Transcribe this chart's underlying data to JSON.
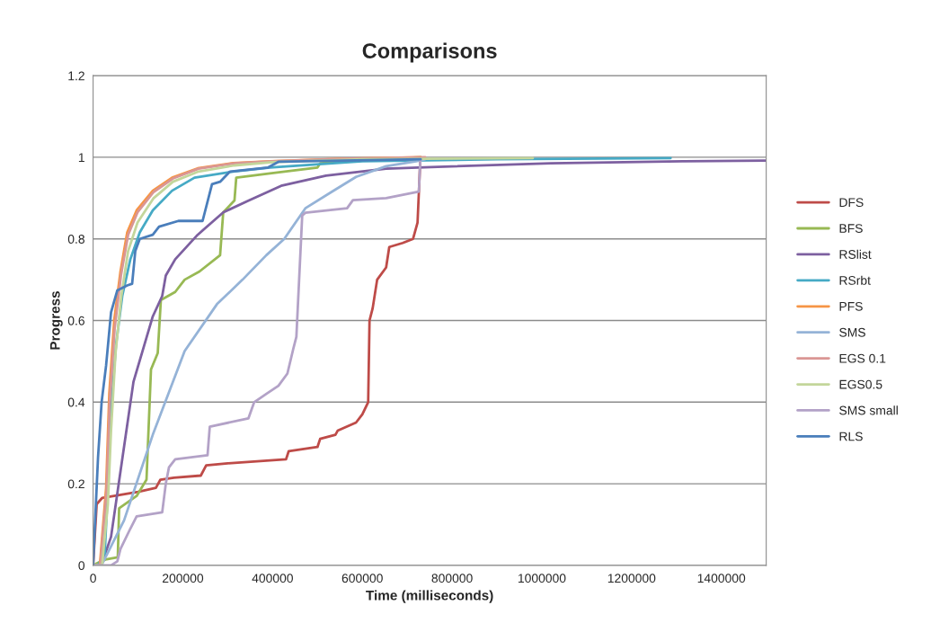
{
  "chart_data": {
    "type": "line",
    "title": "Comparisons",
    "xlabel": "Time (milliseconds)",
    "ylabel": "Progress",
    "xlim": [
      0,
      1500000
    ],
    "xticks": [
      0,
      200000,
      400000,
      600000,
      800000,
      1000000,
      1200000,
      1400000
    ],
    "ylim": [
      0,
      1.2
    ],
    "yticks": [
      0,
      0.2,
      0.4,
      0.6,
      0.8,
      1,
      1.2
    ],
    "grid": "y",
    "legend": "right",
    "line_style": "solid",
    "series": [
      {
        "name": "DFS",
        "color": "#be4b48",
        "x": [
          0,
          8000,
          20000,
          100000,
          140000,
          150000,
          180000,
          240000,
          252000,
          300000,
          430000,
          436000,
          500000,
          506000,
          540000,
          545000,
          586000,
          600000,
          613000,
          616000,
          623000,
          633000,
          653000,
          660000,
          690000,
          713000,
          723000,
          729000
        ],
        "values": [
          0,
          0.15,
          0.165,
          0.18,
          0.19,
          0.21,
          0.215,
          0.22,
          0.245,
          0.25,
          0.26,
          0.28,
          0.29,
          0.31,
          0.32,
          0.33,
          0.35,
          0.37,
          0.4,
          0.6,
          0.63,
          0.7,
          0.73,
          0.78,
          0.79,
          0.8,
          0.84,
          0.99
        ]
      },
      {
        "name": "BFS",
        "color": "#98b954",
        "x": [
          0,
          18000,
          30000,
          55000,
          58000,
          97000,
          119000,
          129000,
          144000,
          151000,
          183000,
          204000,
          237000,
          283000,
          290000,
          315000,
          319000,
          390000,
          500000,
          506000,
          650000,
          730000
        ],
        "values": [
          0,
          0.01,
          0.015,
          0.02,
          0.14,
          0.17,
          0.21,
          0.48,
          0.52,
          0.65,
          0.67,
          0.7,
          0.72,
          0.76,
          0.865,
          0.894,
          0.95,
          0.96,
          0.975,
          0.985,
          0.995,
          1.0
        ]
      },
      {
        "name": "RSlist",
        "color": "#7d60a0",
        "x": [
          0,
          18000,
          40000,
          61000,
          90000,
          133000,
          154000,
          162000,
          183000,
          233000,
          290000,
          347000,
          419000,
          519000,
          653000,
          753000,
          1020000,
          1314000,
          1500000
        ],
        "values": [
          0,
          0,
          0.07,
          0.23,
          0.45,
          0.61,
          0.66,
          0.71,
          0.75,
          0.81,
          0.865,
          0.894,
          0.93,
          0.955,
          0.972,
          0.976,
          0.985,
          0.99,
          0.992
        ]
      },
      {
        "name": "RSrbt",
        "color": "#46aac5",
        "x": [
          0,
          11000,
          26000,
          33000,
          40000,
          51000,
          65000,
          83000,
          104000,
          133000,
          176000,
          226000,
          312000,
          394000,
          600000,
          900000,
          1287000
        ],
        "values": [
          0,
          0,
          0.03,
          0.19,
          0.38,
          0.54,
          0.66,
          0.75,
          0.816,
          0.87,
          0.918,
          0.95,
          0.965,
          0.975,
          0.99,
          0.995,
          0.998
        ]
      },
      {
        "name": "PFS",
        "color": "#f69546",
        "x": [
          0,
          15000,
          29000,
          36000,
          47000,
          61000,
          76000,
          97000,
          133000,
          176000,
          233000,
          312000,
          394000,
          550000,
          730000
        ],
        "values": [
          0,
          0,
          0.19,
          0.42,
          0.6,
          0.72,
          0.816,
          0.87,
          0.918,
          0.95,
          0.973,
          0.986,
          0.99,
          0.996,
          1.0
        ]
      },
      {
        "name": "SMS",
        "color": "#95b3d7",
        "x": [
          0,
          18600,
          69000,
          133000,
          204000,
          276000,
          333000,
          386000,
          426000,
          473000,
          533000,
          586000,
          653000,
          720000,
          740000
        ],
        "values": [
          0,
          0,
          0.11,
          0.32,
          0.525,
          0.64,
          0.7,
          0.76,
          0.8,
          0.875,
          0.916,
          0.952,
          0.978,
          0.99,
          0.995
        ]
      },
      {
        "name": "EGS 0.1",
        "color": "#da9694",
        "x": [
          0,
          16000,
          30000,
          37000,
          48000,
          62000,
          78000,
          99000,
          135000,
          178000,
          235000,
          315000,
          400000,
          560000,
          740000
        ],
        "values": [
          0,
          0,
          0.18,
          0.4,
          0.58,
          0.71,
          0.81,
          0.865,
          0.915,
          0.948,
          0.972,
          0.985,
          0.99,
          0.996,
          1.0
        ]
      },
      {
        "name": "EGS0.5",
        "color": "#c3d69b",
        "x": [
          0,
          20000,
          33000,
          40000,
          50000,
          63000,
          78000,
          99000,
          135000,
          178000,
          235000,
          315000,
          400000,
          600000,
          980000
        ],
        "values": [
          0,
          0,
          0.15,
          0.33,
          0.52,
          0.66,
          0.77,
          0.84,
          0.9,
          0.94,
          0.965,
          0.98,
          0.988,
          0.995,
          0.998
        ]
      },
      {
        "name": "SMS small",
        "color": "#b3a2c7",
        "x": [
          0,
          40000,
          54000,
          61000,
          83000,
          97000,
          154000,
          162000,
          169000,
          183000,
          255000,
          260000,
          346000,
          359000,
          386000,
          413000,
          433000,
          446000,
          453000,
          466000,
          473000,
          566000,
          579000,
          653000,
          726000,
          729000
        ],
        "values": [
          0,
          0,
          0.01,
          0.04,
          0.09,
          0.12,
          0.13,
          0.2,
          0.24,
          0.26,
          0.27,
          0.34,
          0.36,
          0.4,
          0.42,
          0.44,
          0.47,
          0.53,
          0.56,
          0.857,
          0.864,
          0.875,
          0.895,
          0.9,
          0.916,
          0.99
        ]
      },
      {
        "name": "RLS",
        "color": "#4a7ebb",
        "x": [
          0,
          11000,
          19000,
          29000,
          40000,
          54000,
          76000,
          87000,
          94000,
          104000,
          133000,
          147000,
          190000,
          244000,
          265000,
          283000,
          305000,
          390000,
          413000,
          730000
        ],
        "values": [
          0,
          0.265,
          0.4,
          0.49,
          0.62,
          0.674,
          0.686,
          0.69,
          0.77,
          0.8,
          0.81,
          0.83,
          0.844,
          0.844,
          0.934,
          0.94,
          0.965,
          0.975,
          0.989,
          0.995
        ]
      }
    ]
  }
}
